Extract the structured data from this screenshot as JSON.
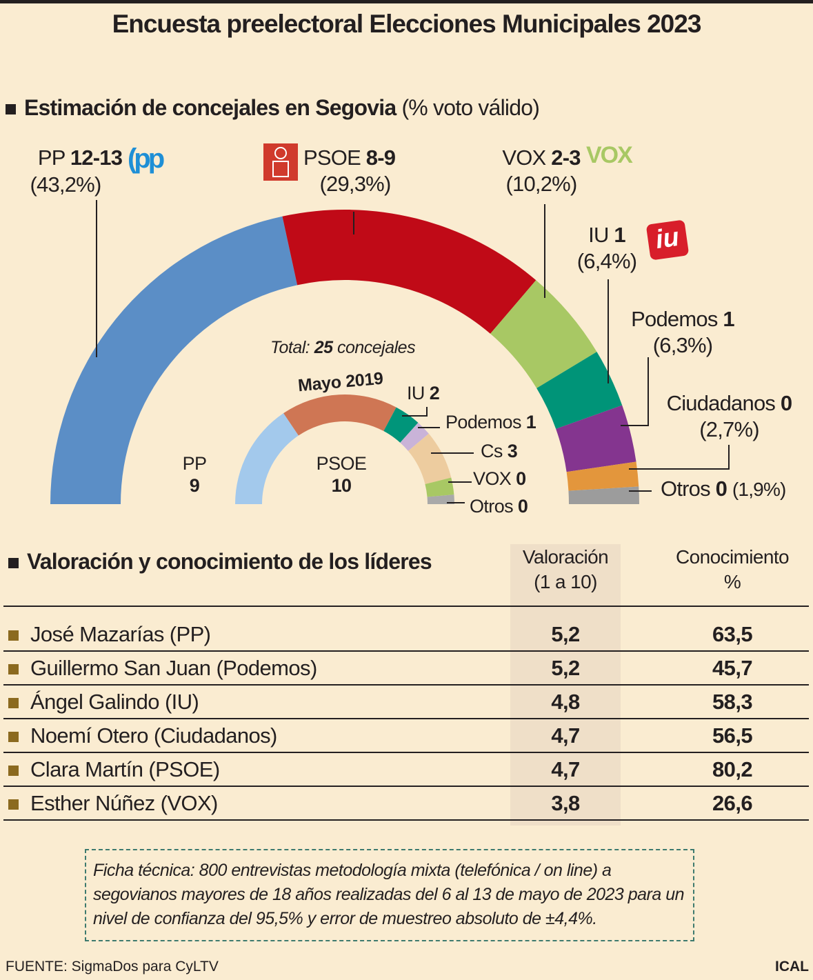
{
  "title": "Encuesta preelectoral Elecciones Municipales 2023",
  "section1": {
    "title": "Estimación de concejales en Segovia",
    "subtitle": "(% voto válido)"
  },
  "chart_data": [
    {
      "type": "pie",
      "shape": "semicircle",
      "title": "Estimación de concejales en Segovia (% voto válido)",
      "total_label": {
        "prefix": "Total:",
        "value": "25",
        "suffix": "concejales"
      },
      "series": [
        {
          "party": "PP",
          "seats": "12-13",
          "pct_label": "(43,2%)",
          "pct": 43.2,
          "color": "#5b8ec6",
          "logo": "pp-logo"
        },
        {
          "party": "PSOE",
          "seats": "8-9",
          "pct_label": "(29,3%)",
          "pct": 29.3,
          "color": "#c00a17",
          "logo": "psoe-logo"
        },
        {
          "party": "VOX",
          "seats": "2-3",
          "pct_label": "(10,2%)",
          "pct": 10.2,
          "color": "#a8c864",
          "logo": "vox-logo",
          "logo_text": "VOX"
        },
        {
          "party": "IU",
          "seats": "1",
          "pct_label": "(6,4%)",
          "pct": 6.4,
          "color": "#009478",
          "logo": "iu-logo",
          "logo_text": "iu"
        },
        {
          "party": "Podemos",
          "seats": "1",
          "pct_label": "(6,3%)",
          "pct": 6.3,
          "color": "#84358f"
        },
        {
          "party": "Ciudadanos",
          "seats": "0",
          "pct_label": "(2,7%)",
          "pct": 2.7,
          "color": "#e3963c"
        },
        {
          "party": "Otros",
          "seats": "0",
          "pct_label": "(1,9%)",
          "pct": 1.9,
          "color": "#9c9c9c"
        }
      ]
    },
    {
      "type": "pie",
      "shape": "semicircle",
      "title": "Mayo 2019",
      "series": [
        {
          "party": "PP",
          "seats": 9,
          "color": "#a3c9ec"
        },
        {
          "party": "PSOE",
          "seats": 10,
          "color": "#cf7654"
        },
        {
          "party": "IU",
          "seats": 2,
          "color": "#00957a"
        },
        {
          "party": "Podemos",
          "seats": 1,
          "color": "#c9b3d8"
        },
        {
          "party": "Cs",
          "seats": 3,
          "color": "#edcc9f"
        },
        {
          "party": "VOX",
          "seats": 0,
          "color": "#a8c864"
        },
        {
          "party": "Otros",
          "seats": 0,
          "color": "#a9a9a9"
        }
      ]
    }
  ],
  "section2": {
    "title": "Valoración y conocimiento de los líderes",
    "col1": {
      "line1": "Valoración",
      "line2": "(1 a 10)"
    },
    "col2": {
      "line1": "Conocimiento",
      "line2": "%"
    },
    "rows": [
      {
        "name": "José Mazarías (PP)",
        "valoracion": "5,2",
        "conocimiento": "63,5"
      },
      {
        "name": "Guillermo San Juan (Podemos)",
        "valoracion": "5,2",
        "conocimiento": "45,7"
      },
      {
        "name": "Ángel Galindo (IU)",
        "valoracion": "4,8",
        "conocimiento": "58,3"
      },
      {
        "name": "Noemí Otero (Ciudadanos)",
        "valoracion": "4,7",
        "conocimiento": "56,5"
      },
      {
        "name": "Clara Martín (PSOE)",
        "valoracion": "4,7",
        "conocimiento": "80,2"
      },
      {
        "name": "Esther Núñez (VOX)",
        "valoracion": "3,8",
        "conocimiento": "26,6"
      }
    ]
  },
  "ficha": "Ficha técnica: 800 entrevistas metodología mixta (telefónica / on line) a segovianos mayores de 18 años realizadas del 6 al 13 de mayo de 2023 para un nivel de confianza del 95,5% y error de muestreo absoluto de ±4,4%.",
  "footer": {
    "source": "FUENTE: SigmaDos para CyLTV",
    "brand": "ICAL"
  }
}
